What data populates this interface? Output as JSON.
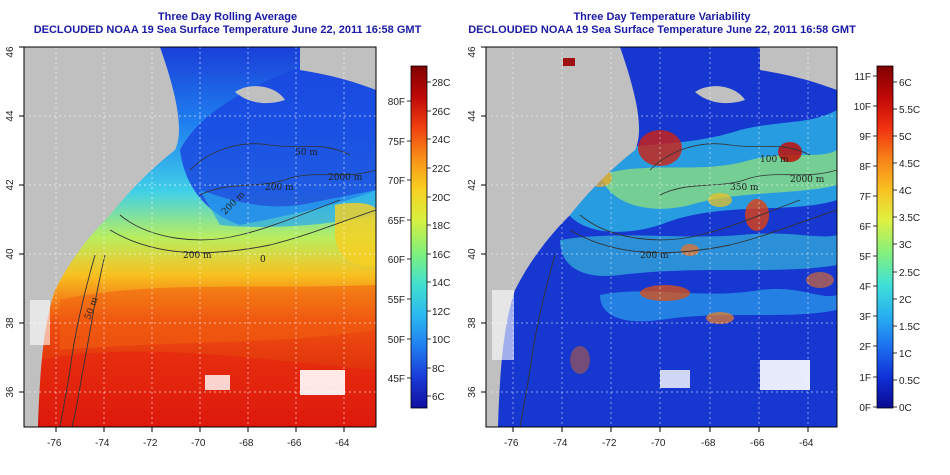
{
  "left_panel": {
    "title": "Three Day Rolling Average",
    "subtitle": "DECLOUDED NOAA 19 Sea Surface Temperature June 22, 2011 16:58 GMT",
    "x_ticks": [
      "-76",
      "-74",
      "-72",
      "-70",
      "-68",
      "-66",
      "-64"
    ],
    "y_ticks": [
      "36",
      "38",
      "40",
      "42",
      "44",
      "46"
    ],
    "contour_labels": [
      "200 m",
      "200 m",
      "2000 m",
      "50 m",
      "50 m",
      "200 m",
      "0"
    ],
    "colorbar_c": [
      "28C",
      "26C",
      "24C",
      "22C",
      "20C",
      "18C",
      "16C",
      "14C",
      "12C",
      "10C",
      "8C",
      "6C"
    ],
    "colorbar_f": [
      "80F",
      "75F",
      "70F",
      "65F",
      "60F",
      "55F",
      "50F",
      "45F"
    ],
    "colorbar_colors": [
      "#1010a0",
      "#1a3ad8",
      "#1f7ef0",
      "#2bb8f0",
      "#40e0d0",
      "#7ef07e",
      "#d8f040",
      "#f8d020",
      "#f89018",
      "#f04010",
      "#c00808",
      "#800000"
    ]
  },
  "right_panel": {
    "title": "Three Day Temperature Variability",
    "subtitle": "DECLOUDED NOAA 19 Sea Surface Temperature June 22, 2011 16:58 GMT",
    "x_ticks": [
      "-76",
      "-74",
      "-72",
      "-70",
      "-68",
      "-66",
      "-64"
    ],
    "y_ticks": [
      "36",
      "38",
      "40",
      "42",
      "44",
      "46"
    ],
    "contour_labels": [
      "200 m",
      "100 m",
      "2000 m",
      "350 m"
    ],
    "colorbar_c": [
      "6C",
      "5.5C",
      "5C",
      "4.5C",
      "4C",
      "3.5C",
      "3C",
      "2.5C",
      "2C",
      "1.5C",
      "1C",
      "0.5C",
      "0C"
    ],
    "colorbar_f": [
      "11F",
      "10F",
      "9F",
      "8F",
      "7F",
      "6F",
      "5F",
      "4F",
      "3F",
      "2F",
      "1F",
      "0F"
    ],
    "colorbar_colors": [
      "#0a0a90",
      "#1030d8",
      "#1c70f0",
      "#28b0f0",
      "#40e0d8",
      "#80f080",
      "#e0f040",
      "#f8c020",
      "#f88018",
      "#f03010",
      "#c00808",
      "#800000"
    ]
  }
}
